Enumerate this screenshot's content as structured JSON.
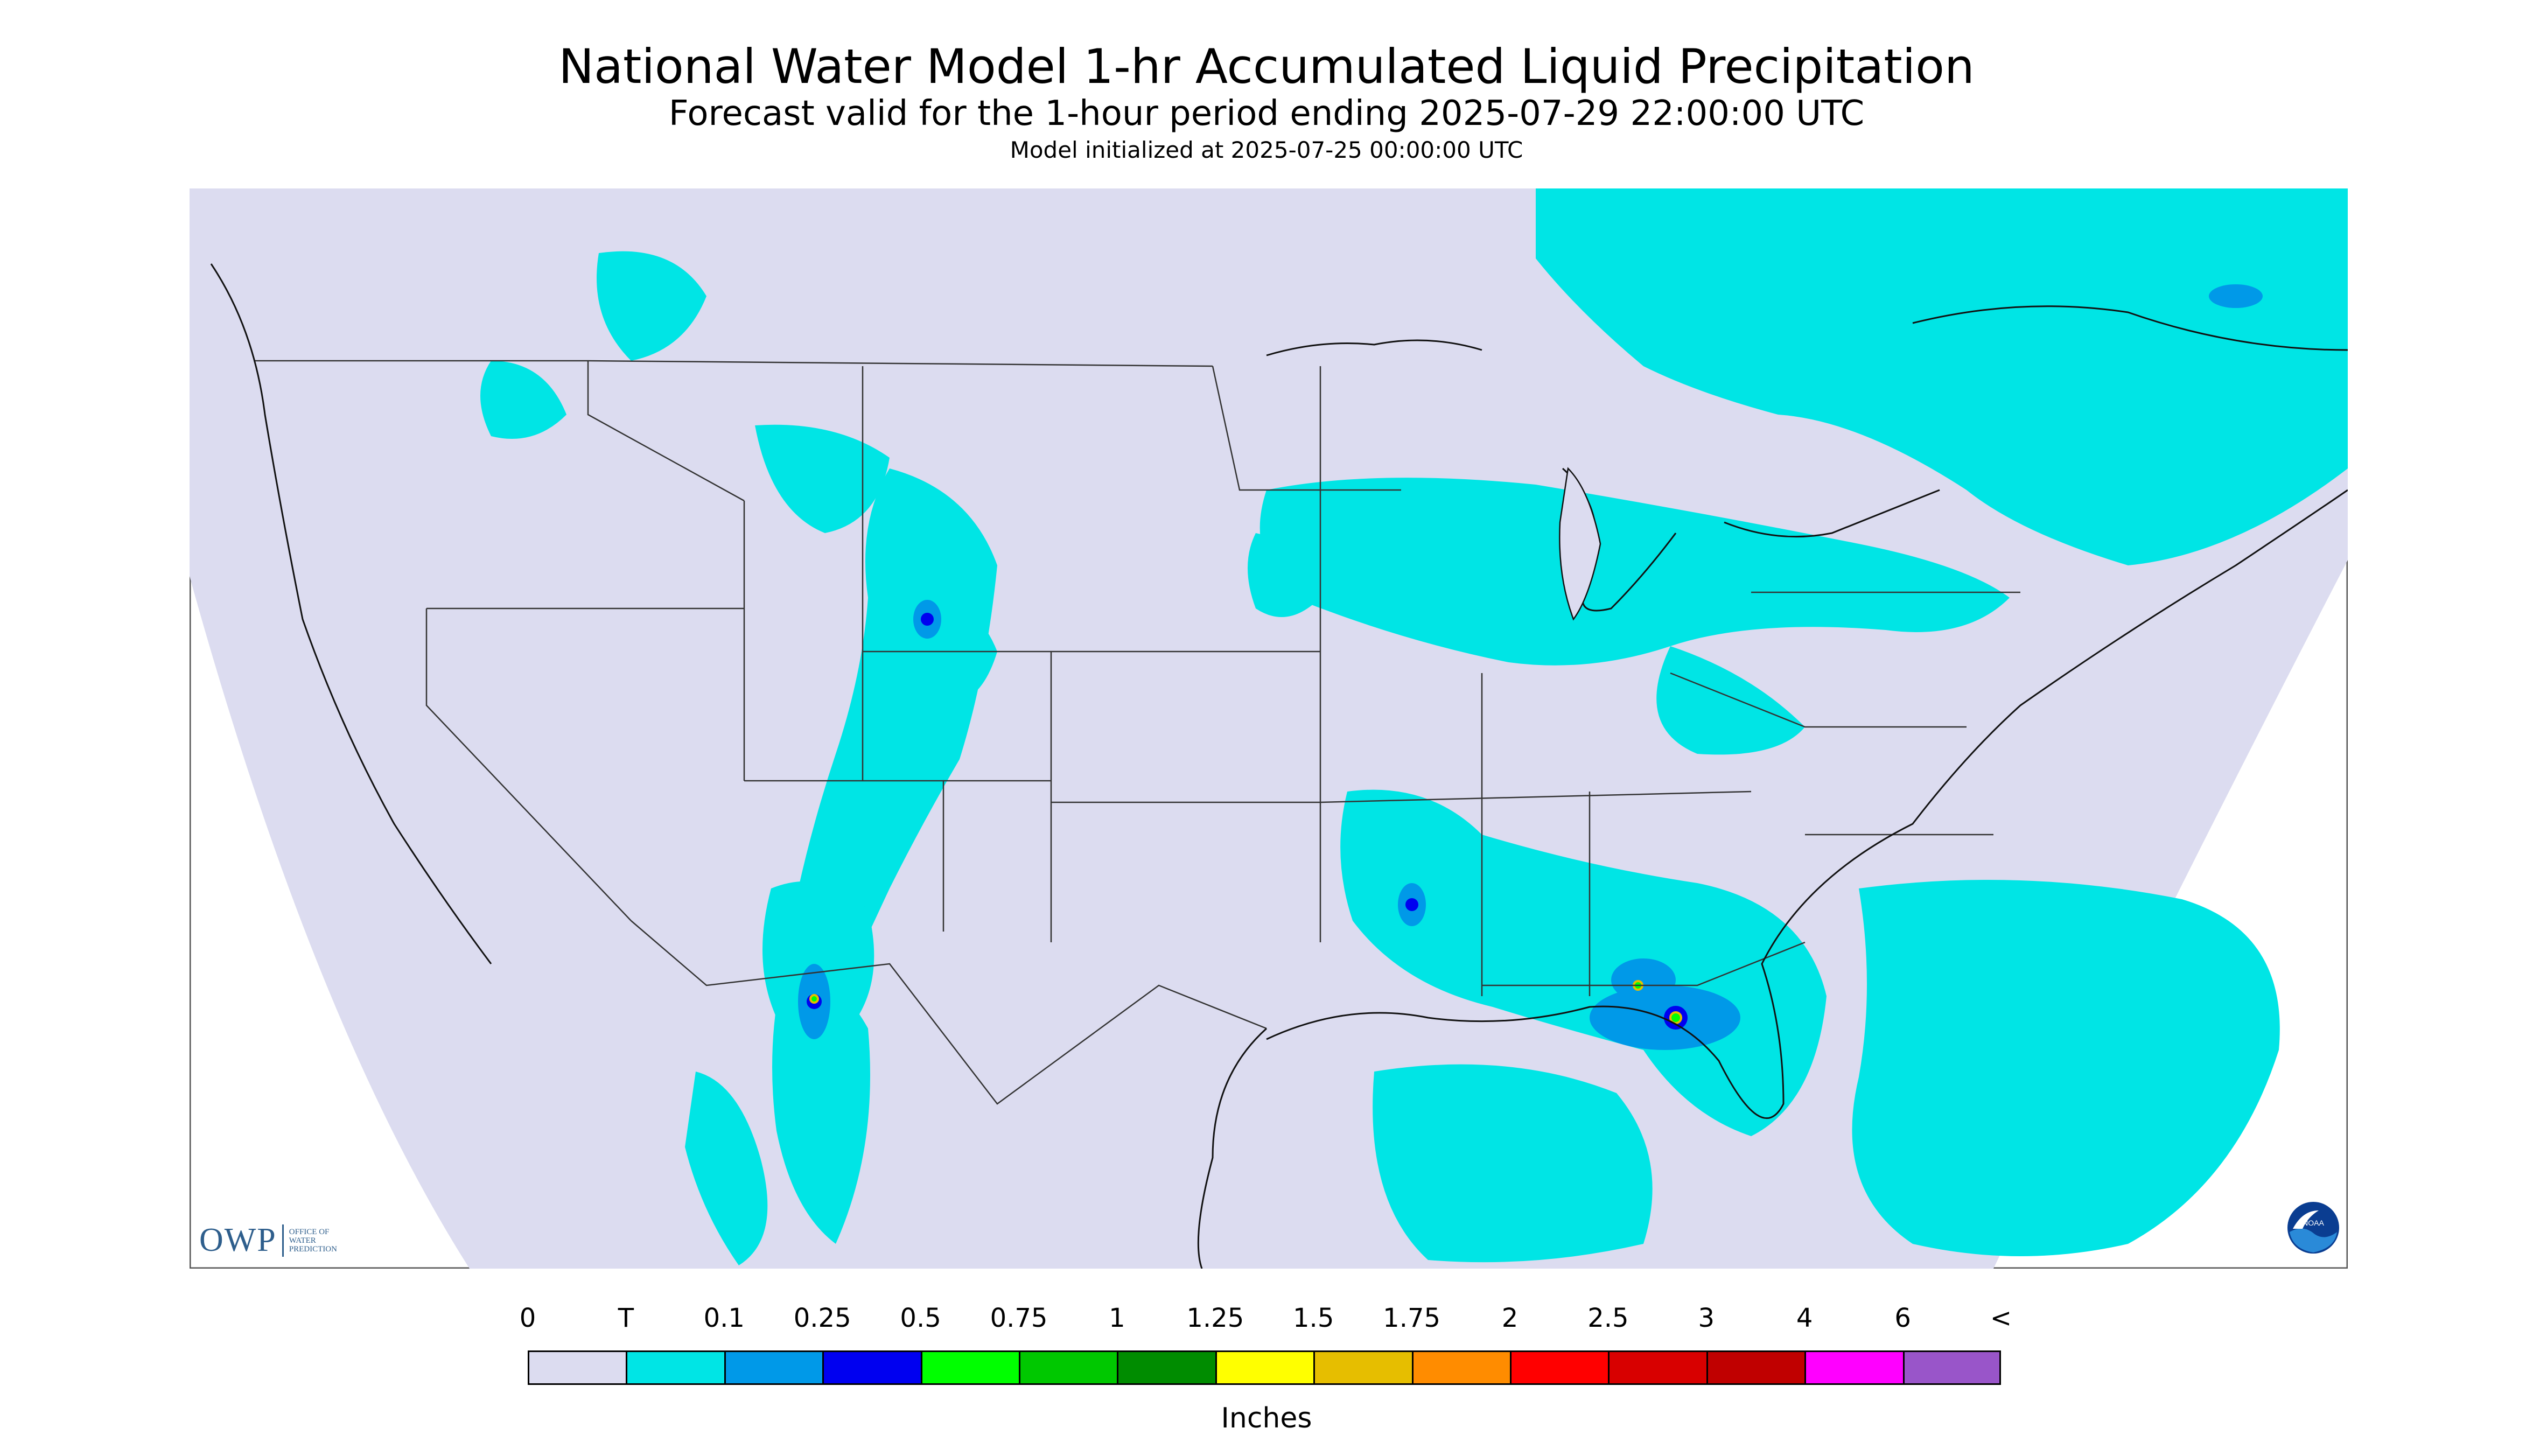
{
  "header": {
    "title": "National Water Model 1-hr Accumulated Liquid Precipitation",
    "subtitle": "Forecast valid for the 1-hour period ending 2025-07-29 22:00:00 UTC",
    "init_line": "Model initialized at 2025-07-25 00:00:00 UTC"
  },
  "legend": {
    "units": "Inches",
    "labels": [
      "0",
      "T",
      "0.1",
      "0.25",
      "0.5",
      "0.75",
      "1",
      "1.25",
      "1.5",
      "1.75",
      "2",
      "2.5",
      "3",
      "4",
      "6",
      "<"
    ],
    "colors": [
      "#dcdcf0",
      "#00e5e5",
      "#0099e8",
      "#0000f0",
      "#00ff00",
      "#00c800",
      "#008c00",
      "#ffff00",
      "#e6be00",
      "#ff8c00",
      "#ff0000",
      "#d80000",
      "#c00000",
      "#ff00ff",
      "#9955c9"
    ]
  },
  "map": {
    "background_color": "#dcdcf0",
    "precip_light_color": "#00e5e5",
    "precip_moderate_color": "#0099e8",
    "precip_heavy_color": "#0000f0",
    "border_color": "#333333"
  },
  "logos": {
    "owp_letters": "OWP",
    "owp_text": "OFFICE OF\nWATER\nPREDICTION",
    "noaa_text": "NOAA",
    "noaa_icon": "noaa-seal-icon"
  }
}
